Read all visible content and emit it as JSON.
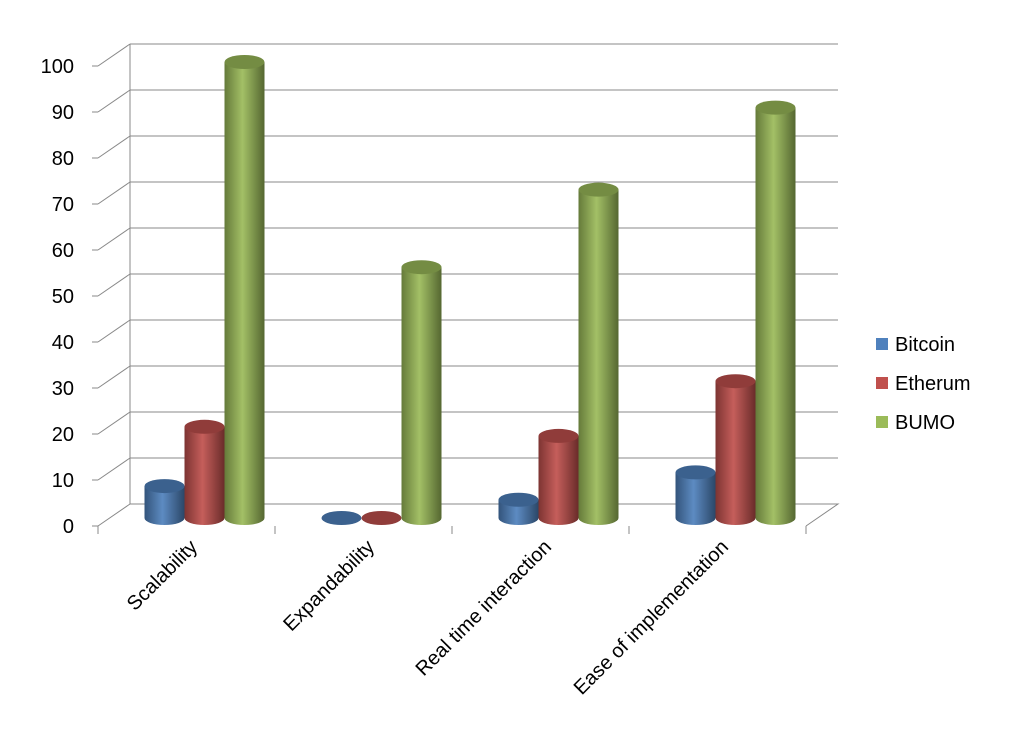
{
  "chart_data": {
    "type": "bar",
    "title": "",
    "xlabel": "",
    "ylabel": "",
    "ylim": [
      0,
      100
    ],
    "yticks": [
      0,
      10,
      20,
      30,
      40,
      50,
      60,
      70,
      80,
      90,
      100
    ],
    "grid": true,
    "legend_position": "right",
    "categories": [
      "Scalability",
      "Expandability",
      "Real time interaction",
      "Ease of implementation"
    ],
    "series": [
      {
        "name": "Bitcoin",
        "color": "#4f81bd",
        "values": [
          7,
          0,
          4,
          10
        ]
      },
      {
        "name": "Etherum",
        "color": "#c0504d",
        "values": [
          20,
          0,
          18,
          30
        ]
      },
      {
        "name": "BUMO",
        "color": "#9bbb59",
        "values": [
          100,
          55,
          72,
          90
        ]
      }
    ]
  }
}
